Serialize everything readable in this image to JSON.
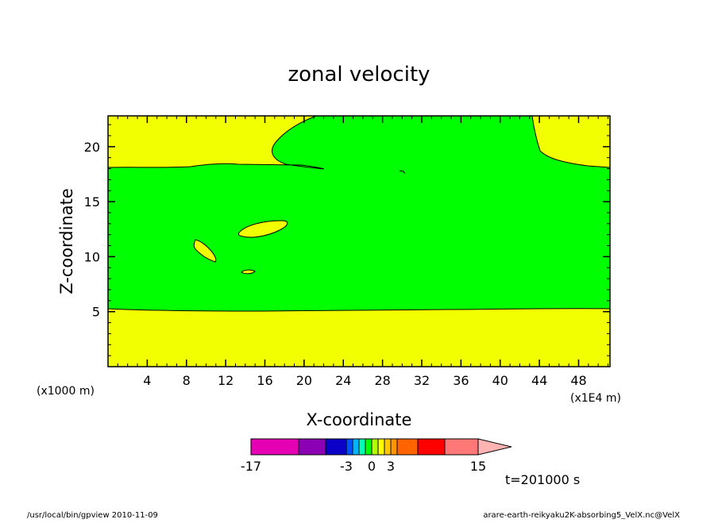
{
  "chart_data": {
    "type": "contour",
    "title": "zonal velocity",
    "xlabel": "X-coordinate",
    "ylabel": "Z-coordinate",
    "x_scale_note": "(x1E4 m)",
    "y_scale_note": "(x1000 m)",
    "x_ticks": [
      "4",
      "8",
      "12",
      "16",
      "20",
      "24",
      "28",
      "32",
      "36",
      "40",
      "44",
      "48"
    ],
    "y_ticks": [
      "5",
      "10",
      "15",
      "20"
    ],
    "xlim": [
      0,
      51.2
    ],
    "ylim": [
      0,
      22.8
    ],
    "colorbar": {
      "tick_labels": [
        "-17",
        "-3",
        "0",
        "3",
        "15"
      ],
      "colors": [
        "#e600b4",
        "#8c00b4",
        "#0a00c8",
        "#0050ff",
        "#00b4ff",
        "#00ffb4",
        "#00ff00",
        "#b4ff00",
        "#ffff00",
        "#ffc800",
        "#ff9600",
        "#ff6400",
        "#ff0000",
        "#ff7878",
        "#ffb4b4"
      ]
    },
    "time_label": "t=201000 s",
    "regions": {
      "background": "#ffff00",
      "middle_band": "#00ff00"
    }
  },
  "footer": {
    "left": "/usr/local/bin/gpview  2010-11-09",
    "right": "arare-earth-reikyaku2K-absorbing5_VelX.nc@VelX"
  }
}
